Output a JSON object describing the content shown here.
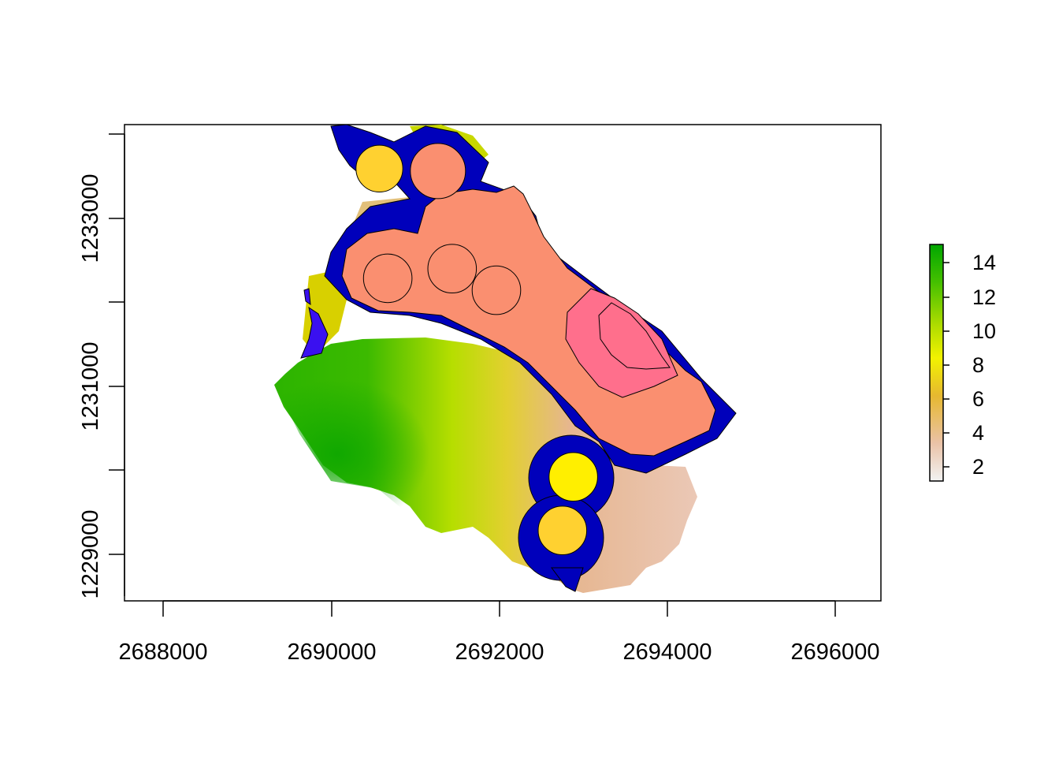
{
  "chart_data": {
    "type": "raster-map",
    "x_axis": {
      "ticks": [
        2688000,
        2690000,
        2692000,
        2694000,
        2696000
      ],
      "labels": [
        "2688000",
        "2690000",
        "2692000",
        "2694000",
        "2696000"
      ],
      "range": [
        2687500,
        2696550
      ]
    },
    "y_axis": {
      "major_ticks": [
        1229000,
        1231000,
        1233000
      ],
      "labels": [
        "1229000",
        "1231000",
        "1233000"
      ],
      "minor_ticks": [
        1228500,
        1230000,
        1232000,
        1234000
      ],
      "range": [
        1228300,
        1234250
      ]
    },
    "legend": {
      "labels": [
        "2",
        "4",
        "6",
        "8",
        "10",
        "12",
        "14"
      ],
      "range": [
        1,
        15
      ],
      "colors": [
        "#f2f2f2",
        "#eac2a7",
        "#e6b830",
        "#f2f200",
        "#aedc00",
        "#45c000",
        "#00a600"
      ]
    },
    "overlay_colors": {
      "buffer": "#0000bb",
      "zone": "#fa8f70",
      "zone_core": "#ff6f8c",
      "point_yellow": "#ffef00",
      "point_gold": "#ffd130",
      "edge_patch": "#3a10f0"
    },
    "circles": [
      {
        "name": "circle-north-west",
        "x": 2690550,
        "y": 1233700,
        "r": 280,
        "fill": "point_gold"
      },
      {
        "name": "circle-north",
        "x": 2691250,
        "y": 1233670,
        "r": 330,
        "fill": "zone"
      },
      {
        "name": "circle-center-1",
        "x": 2690650,
        "y": 1232330,
        "r": 290,
        "fill": "zone"
      },
      {
        "name": "circle-center-2",
        "x": 2691420,
        "y": 1232450,
        "r": 290,
        "fill": "zone"
      },
      {
        "name": "circle-center-3",
        "x": 2691950,
        "y": 1232180,
        "r": 290,
        "fill": "zone"
      },
      {
        "name": "circle-south-1",
        "x": 2692870,
        "y": 1229850,
        "r": 290,
        "fill": "point_yellow"
      },
      {
        "name": "circle-south-2",
        "x": 2692740,
        "y": 1229180,
        "r": 290,
        "fill": "point_gold"
      }
    ]
  }
}
